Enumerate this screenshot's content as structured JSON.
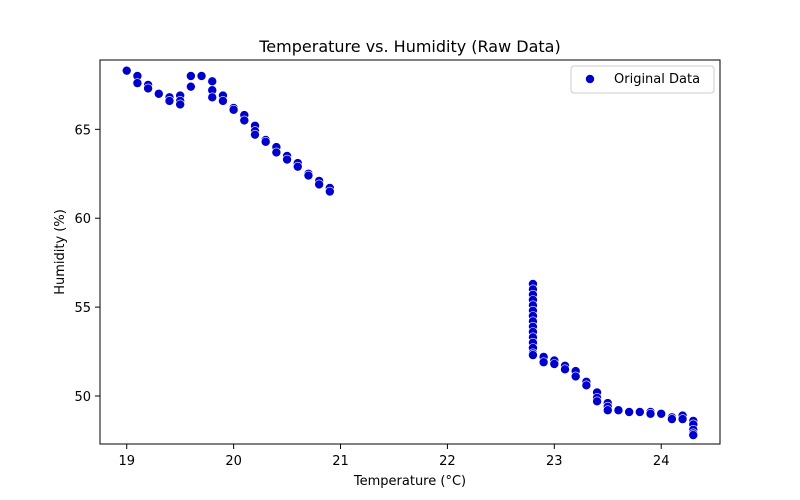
{
  "chart_data": {
    "type": "scatter",
    "title": "Temperature vs. Humidity (Raw Data)",
    "xlabel": "Temperature (°C)",
    "ylabel": "Humidity (%)",
    "xlim": [
      18.75,
      24.55
    ],
    "ylim": [
      47.3,
      68.9
    ],
    "xticks": [
      19,
      20,
      21,
      22,
      23,
      24
    ],
    "yticks": [
      50,
      55,
      60,
      65
    ],
    "grid": false,
    "legend_position": "top-right",
    "marker_color": "#0000cc",
    "series": [
      {
        "name": "Original Data",
        "points": [
          [
            19.0,
            68.3
          ],
          [
            19.1,
            68.0
          ],
          [
            19.1,
            67.6
          ],
          [
            19.2,
            67.5
          ],
          [
            19.2,
            67.3
          ],
          [
            19.3,
            67.0
          ],
          [
            19.4,
            66.8
          ],
          [
            19.4,
            66.6
          ],
          [
            19.5,
            66.9
          ],
          [
            19.5,
            66.6
          ],
          [
            19.5,
            66.4
          ],
          [
            19.6,
            68.0
          ],
          [
            19.6,
            67.4
          ],
          [
            19.7,
            68.0
          ],
          [
            19.8,
            67.7
          ],
          [
            19.8,
            67.2
          ],
          [
            19.8,
            66.8
          ],
          [
            19.9,
            66.9
          ],
          [
            19.9,
            66.6
          ],
          [
            20.0,
            66.2
          ],
          [
            20.0,
            66.1
          ],
          [
            20.1,
            65.8
          ],
          [
            20.1,
            65.5
          ],
          [
            20.2,
            65.2
          ],
          [
            20.2,
            64.9
          ],
          [
            20.2,
            64.7
          ],
          [
            20.3,
            64.4
          ],
          [
            20.3,
            64.3
          ],
          [
            20.4,
            64.0
          ],
          [
            20.4,
            63.7
          ],
          [
            20.5,
            63.5
          ],
          [
            20.5,
            63.3
          ],
          [
            20.6,
            63.1
          ],
          [
            20.6,
            62.9
          ],
          [
            20.7,
            62.5
          ],
          [
            20.7,
            62.4
          ],
          [
            20.8,
            62.1
          ],
          [
            20.8,
            61.9
          ],
          [
            20.9,
            61.7
          ],
          [
            20.9,
            61.5
          ],
          [
            22.8,
            56.3
          ],
          [
            22.8,
            56.0
          ],
          [
            22.8,
            55.7
          ],
          [
            22.8,
            55.4
          ],
          [
            22.8,
            55.1
          ],
          [
            22.8,
            54.8
          ],
          [
            22.8,
            54.5
          ],
          [
            22.8,
            54.2
          ],
          [
            22.8,
            53.9
          ],
          [
            22.8,
            53.6
          ],
          [
            22.8,
            53.3
          ],
          [
            22.8,
            53.0
          ],
          [
            22.8,
            52.7
          ],
          [
            22.8,
            52.4
          ],
          [
            22.8,
            52.3
          ],
          [
            22.9,
            52.2
          ],
          [
            22.9,
            51.9
          ],
          [
            23.0,
            52.0
          ],
          [
            23.0,
            51.8
          ],
          [
            23.1,
            51.7
          ],
          [
            23.1,
            51.5
          ],
          [
            23.2,
            51.4
          ],
          [
            23.2,
            51.1
          ],
          [
            23.3,
            50.8
          ],
          [
            23.3,
            50.6
          ],
          [
            23.4,
            50.2
          ],
          [
            23.4,
            49.9
          ],
          [
            23.4,
            49.7
          ],
          [
            23.5,
            49.6
          ],
          [
            23.5,
            49.4
          ],
          [
            23.5,
            49.2
          ],
          [
            23.6,
            49.2
          ],
          [
            23.7,
            49.1
          ],
          [
            23.8,
            49.1
          ],
          [
            23.9,
            49.1
          ],
          [
            23.9,
            49.0
          ],
          [
            24.0,
            49.0
          ],
          [
            24.1,
            48.8
          ],
          [
            24.1,
            48.7
          ],
          [
            24.2,
            48.9
          ],
          [
            24.2,
            48.7
          ],
          [
            24.3,
            48.6
          ],
          [
            24.3,
            48.4
          ],
          [
            24.3,
            48.1
          ],
          [
            24.3,
            47.9
          ],
          [
            24.3,
            47.8
          ]
        ]
      }
    ]
  }
}
